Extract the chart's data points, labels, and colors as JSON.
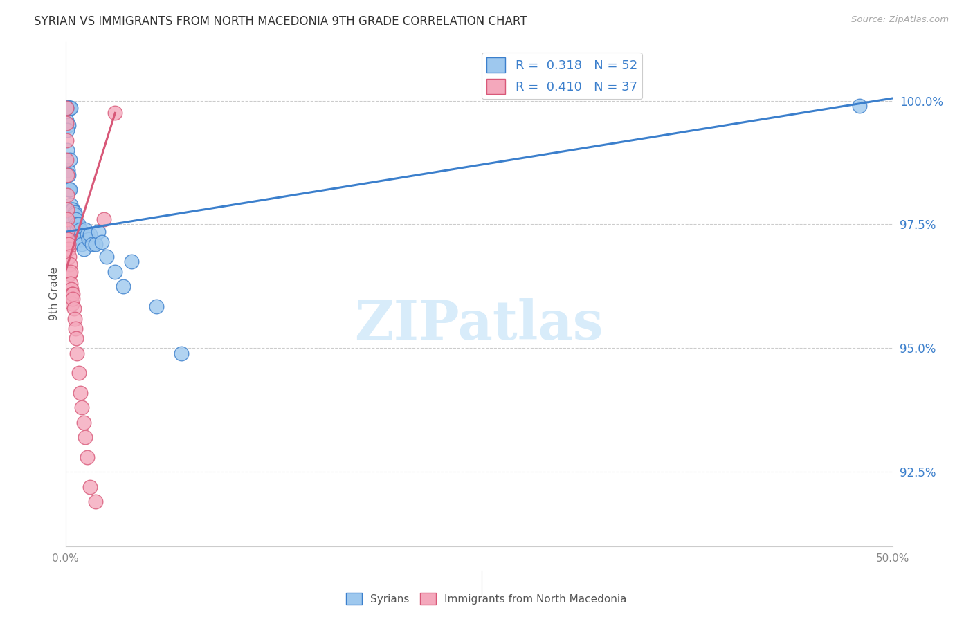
{
  "title": "SYRIAN VS IMMIGRANTS FROM NORTH MACEDONIA 9TH GRADE CORRELATION CHART",
  "source": "Source: ZipAtlas.com",
  "ylabel": "9th Grade",
  "y_ticks": [
    92.5,
    95.0,
    97.5,
    100.0
  ],
  "y_tick_labels": [
    "92.5%",
    "95.0%",
    "97.5%",
    "100.0%"
  ],
  "xlim": [
    0.0,
    50.0
  ],
  "ylim": [
    91.0,
    101.2
  ],
  "legend1_R": "0.318",
  "legend1_N": "52",
  "legend2_R": "0.410",
  "legend2_N": "37",
  "syrians_color": "#9EC8EE",
  "macedonians_color": "#F4A8BC",
  "trend_blue": "#3B7FCC",
  "trend_pink": "#D85878",
  "watermark_color": "#D8ECFA",
  "legend_label1": "Syrians",
  "legend_label2": "Immigrants from North Macedonia",
  "blue_trend_x0": 0.0,
  "blue_trend_y0": 97.35,
  "blue_trend_x1": 50.0,
  "blue_trend_y1": 100.05,
  "pink_trend_x0": 0.0,
  "pink_trend_y0": 96.55,
  "pink_trend_x1": 3.0,
  "pink_trend_y1": 99.75,
  "syrians_x": [
    0.05,
    0.08,
    0.12,
    0.15,
    0.18,
    0.2,
    0.22,
    0.25,
    0.28,
    0.3,
    0.05,
    0.1,
    0.12,
    0.15,
    0.18,
    0.2,
    0.22,
    0.25,
    0.28,
    0.3,
    0.35,
    0.4,
    0.42,
    0.45,
    0.5,
    0.55,
    0.58,
    0.6,
    0.65,
    0.7,
    0.75,
    0.8,
    0.85,
    0.9,
    0.95,
    1.0,
    1.1,
    1.2,
    1.3,
    1.4,
    1.5,
    1.6,
    1.8,
    2.0,
    2.2,
    2.5,
    3.0,
    3.5,
    4.0,
    5.5,
    7.0,
    48.0
  ],
  "syrians_y": [
    99.85,
    99.6,
    99.85,
    99.85,
    99.85,
    99.5,
    99.85,
    99.85,
    99.85,
    99.85,
    99.85,
    99.4,
    99.0,
    98.6,
    98.2,
    98.5,
    98.2,
    98.8,
    98.2,
    97.9,
    97.75,
    97.8,
    97.8,
    97.6,
    97.45,
    97.75,
    97.7,
    97.6,
    97.5,
    97.4,
    97.5,
    97.3,
    97.2,
    97.4,
    97.2,
    97.1,
    97.0,
    97.4,
    97.3,
    97.2,
    97.3,
    97.1,
    97.1,
    97.35,
    97.15,
    96.85,
    96.55,
    96.25,
    96.75,
    95.85,
    94.9,
    99.9
  ],
  "macedonians_x": [
    0.05,
    0.05,
    0.07,
    0.08,
    0.1,
    0.1,
    0.12,
    0.12,
    0.15,
    0.15,
    0.18,
    0.2,
    0.22,
    0.25,
    0.28,
    0.3,
    0.32,
    0.35,
    0.38,
    0.4,
    0.42,
    0.45,
    0.5,
    0.55,
    0.6,
    0.65,
    0.7,
    0.8,
    0.9,
    1.0,
    1.1,
    1.2,
    1.3,
    1.5,
    1.8,
    2.3,
    3.0
  ],
  "macedonians_y": [
    99.85,
    99.55,
    99.2,
    98.8,
    98.5,
    98.1,
    97.8,
    97.6,
    97.4,
    97.2,
    97.0,
    97.1,
    96.85,
    96.7,
    96.5,
    96.55,
    96.3,
    96.2,
    96.1,
    95.9,
    96.1,
    96.0,
    95.8,
    95.6,
    95.4,
    95.2,
    94.9,
    94.5,
    94.1,
    93.8,
    93.5,
    93.2,
    92.8,
    92.2,
    91.9,
    97.6,
    99.75
  ]
}
